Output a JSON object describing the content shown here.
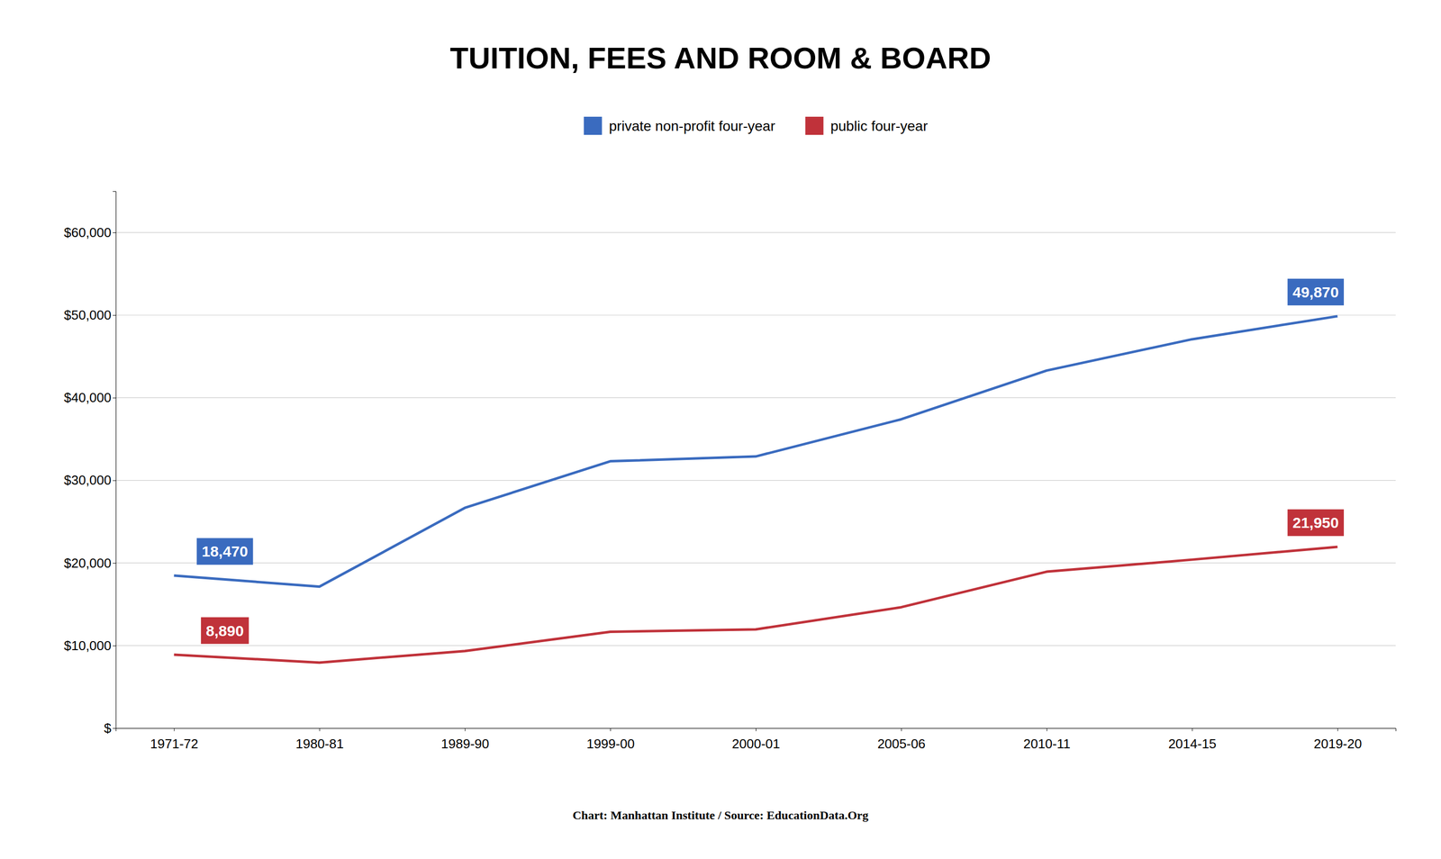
{
  "chart_data": {
    "type": "line",
    "title": "TUITION, FEES AND ROOM & BOARD",
    "source": "Chart: Manhattan Institute  /  Source: EducationData.Org",
    "categories": [
      "1971-72",
      "1980-81",
      "1989-90",
      "1999-00",
      "2000-01",
      "2005-06",
      "2010-11",
      "2014-15",
      "2019-20"
    ],
    "series": [
      {
        "name": "private non-profit four-year",
        "color": "#3a6bbf",
        "values": [
          18470,
          17130,
          26670,
          32310,
          32890,
          37390,
          43290,
          47080,
          49870
        ],
        "value_labels": [
          "18,470",
          null,
          null,
          null,
          null,
          null,
          null,
          null,
          "49,870"
        ]
      },
      {
        "name": "public four-year",
        "color": "#c0323a",
        "values": [
          8890,
          7940,
          9340,
          11660,
          11960,
          14640,
          18940,
          20400,
          21950
        ],
        "value_labels": [
          "8,890",
          null,
          null,
          null,
          null,
          null,
          null,
          null,
          "21,950"
        ]
      }
    ],
    "ylim": [
      0,
      65000
    ],
    "yticks": [
      {
        "value": 0,
        "label": "$"
      },
      {
        "value": 10000,
        "label": "$10,000"
      },
      {
        "value": 20000,
        "label": "$20,000"
      },
      {
        "value": 30000,
        "label": "$30,000"
      },
      {
        "value": 40000,
        "label": "$40,000"
      },
      {
        "value": 50000,
        "label": "$50,000"
      },
      {
        "value": 60000,
        "label": "$60,000"
      }
    ],
    "grid": true,
    "legend": "top",
    "data_labels": true
  }
}
